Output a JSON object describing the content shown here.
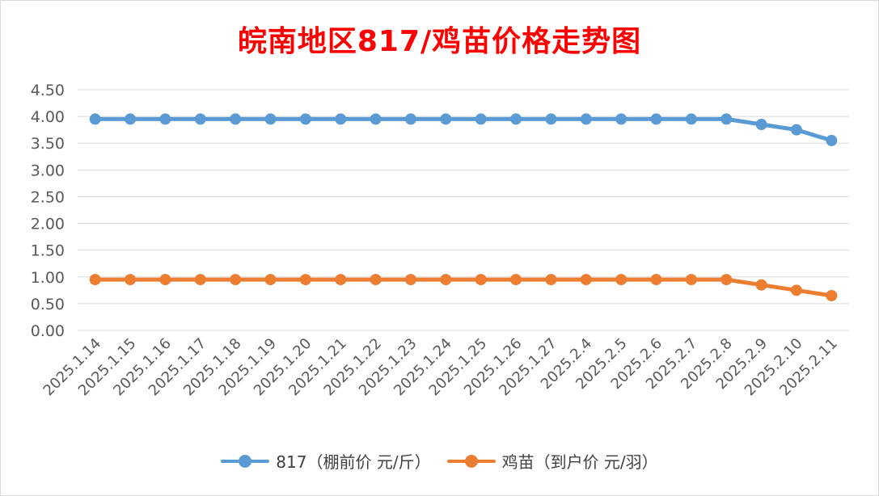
{
  "chart_data": {
    "type": "line",
    "title": "皖南地区817/鸡苗价格走势图",
    "categories": [
      "2025.1.14",
      "2025.1.15",
      "2025.1.16",
      "2025.1.17",
      "2025.1.18",
      "2025.1.19",
      "2025.1.20",
      "2025.1.21",
      "2025.1.22",
      "2025.1.23",
      "2025.1.24",
      "2025.1.25",
      "2025.1.26",
      "2025.1.27",
      "2025.2.4",
      "2025.2.5",
      "2025.2.6",
      "2025.2.7",
      "2025.2.8",
      "2025.2.9",
      "2025.2.10",
      "2025.2.11"
    ],
    "series": [
      {
        "name": "817（棚前价 元/斤）",
        "color": "#5b9bd5",
        "values": [
          3.95,
          3.95,
          3.95,
          3.95,
          3.95,
          3.95,
          3.95,
          3.95,
          3.95,
          3.95,
          3.95,
          3.95,
          3.95,
          3.95,
          3.95,
          3.95,
          3.95,
          3.95,
          3.95,
          3.85,
          3.75,
          3.55
        ]
      },
      {
        "name": "鸡苗（到户价 元/羽）",
        "color": "#ed7d31",
        "values": [
          0.95,
          0.95,
          0.95,
          0.95,
          0.95,
          0.95,
          0.95,
          0.95,
          0.95,
          0.95,
          0.95,
          0.95,
          0.95,
          0.95,
          0.95,
          0.95,
          0.95,
          0.95,
          0.95,
          0.85,
          0.75,
          0.65
        ]
      }
    ],
    "yticks": [
      "0.00",
      "0.50",
      "1.00",
      "1.50",
      "2.00",
      "2.50",
      "3.00",
      "3.50",
      "4.00",
      "4.50"
    ],
    "ylim": [
      0,
      4.5
    ],
    "grid": true,
    "legend_position": "bottom"
  }
}
